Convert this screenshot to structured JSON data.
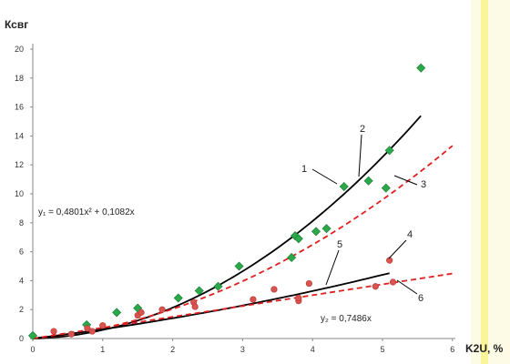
{
  "chart_data": {
    "type": "scatter",
    "xlabel": "K2U, %",
    "ylabel": "Ксвг",
    "xlim": [
      0,
      6
    ],
    "ylim": [
      0,
      20
    ],
    "x_ticks": [
      "0",
      "1",
      "2",
      "3",
      "4",
      "5",
      "6"
    ],
    "y_ticks": [
      "0",
      "2",
      "4",
      "6",
      "8",
      "10",
      "12",
      "14",
      "16",
      "18",
      "20"
    ],
    "grid": false,
    "series": [
      {
        "marker": "diamond",
        "color": "#2aa84a",
        "points": [
          [
            0.0,
            0.2
          ],
          [
            0.77,
            0.95
          ],
          [
            1.2,
            1.8
          ],
          [
            1.5,
            2.1
          ],
          [
            2.08,
            2.8
          ],
          [
            2.38,
            3.3
          ],
          [
            2.65,
            3.6
          ],
          [
            2.95,
            5.0
          ],
          [
            3.7,
            5.6
          ],
          [
            3.75,
            7.1
          ],
          [
            3.8,
            6.9
          ],
          [
            4.05,
            7.4
          ],
          [
            4.2,
            7.6
          ],
          [
            4.45,
            10.5
          ],
          [
            4.8,
            10.9
          ],
          [
            5.05,
            10.4
          ],
          [
            5.1,
            13.0
          ],
          [
            5.55,
            18.7
          ]
        ]
      },
      {
        "marker": "circle",
        "color": "#d9534f",
        "points": [
          [
            0.3,
            0.5
          ],
          [
            0.55,
            0.3
          ],
          [
            0.78,
            0.7
          ],
          [
            0.85,
            0.5
          ],
          [
            1.0,
            0.9
          ],
          [
            1.5,
            1.6
          ],
          [
            1.55,
            1.8
          ],
          [
            1.85,
            2.0
          ],
          [
            2.3,
            2.5
          ],
          [
            2.32,
            2.2
          ],
          [
            3.15,
            2.7
          ],
          [
            3.45,
            3.4
          ],
          [
            3.8,
            2.6
          ],
          [
            3.8,
            2.8
          ],
          [
            3.95,
            3.8
          ],
          [
            4.9,
            3.6
          ],
          [
            5.1,
            5.4
          ],
          [
            5.15,
            3.9
          ]
        ]
      }
    ],
    "trendlines": [
      {
        "label": "1",
        "style": "solid",
        "color": "#000000",
        "a": 0.4801,
        "b": 0.1082,
        "x_range": [
          0,
          5.55
        ]
      },
      {
        "label": "3",
        "style": "dashed",
        "color": "#e02020",
        "a": 0.3,
        "b": 0.42,
        "x_range": [
          0,
          6
        ]
      },
      {
        "label": "5",
        "style": "solid",
        "color": "#000000",
        "a": 0.06,
        "b": 0.58,
        "x_range": [
          0,
          5.1
        ]
      },
      {
        "label": "6",
        "style": "dashed",
        "color": "#e02020",
        "a": 0.0,
        "b": 0.7486,
        "x_range": [
          0,
          6
        ]
      }
    ],
    "equations": {
      "y1": "y₁ = 0,4801x² + 0,1082x",
      "y2": "y₂ = 0,7486x"
    },
    "curve_labels": [
      "1",
      "2",
      "3",
      "4",
      "5",
      "6"
    ]
  }
}
